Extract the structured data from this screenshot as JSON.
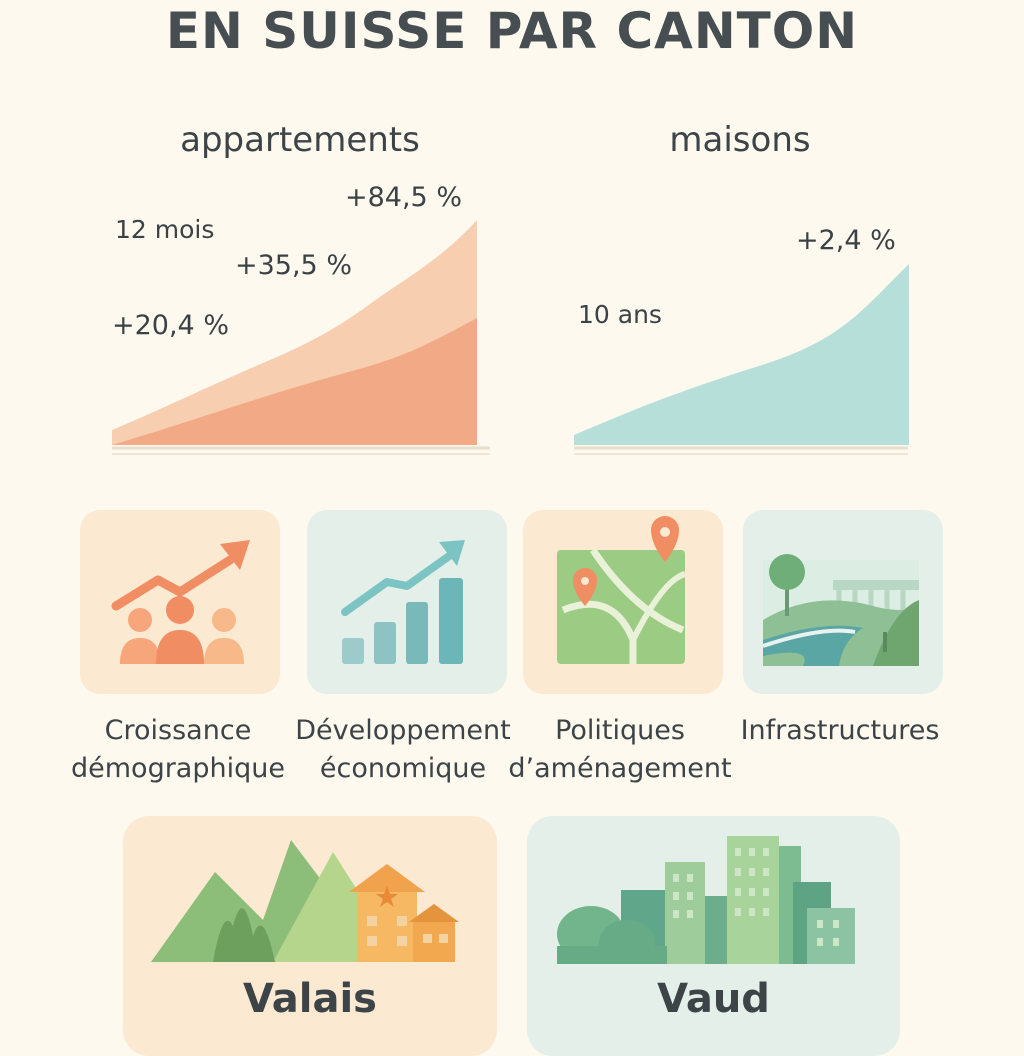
{
  "page": {
    "title": "EN SUISSE PAR CANTON"
  },
  "charts": {
    "apartments": {
      "title": "appartements",
      "period_label": "12 mois",
      "labels": [
        "+20,4 %",
        "+35,5 %",
        "+84,5 %"
      ],
      "colors": {
        "front": "#f0a27f",
        "back": "#f7c9a8"
      }
    },
    "houses": {
      "title": "maisons",
      "period_label": "10 ans",
      "labels": [
        "+2,4 %"
      ],
      "colors": {
        "fill": "#a9dad6"
      }
    }
  },
  "factors": [
    {
      "label": "Croissance\ndémographique",
      "icon": "population-growth-icon",
      "bg": "#fbe9d2"
    },
    {
      "label": "Développement\néconomique",
      "icon": "economic-bars-icon",
      "bg": "#e3efe8"
    },
    {
      "label": "Politiques\nd’aménagement",
      "icon": "map-pin-icon",
      "bg": "#fbe9d2"
    },
    {
      "label": "Infrastructures",
      "icon": "road-bridge-icon",
      "bg": "#e3efe8"
    }
  ],
  "regions": [
    {
      "name": "Valais",
      "icon": "mountains-house-icon",
      "bg": "#fbe9d2"
    },
    {
      "name": "Vaud",
      "icon": "city-buildings-icon",
      "bg": "#e3efe8"
    }
  ]
}
